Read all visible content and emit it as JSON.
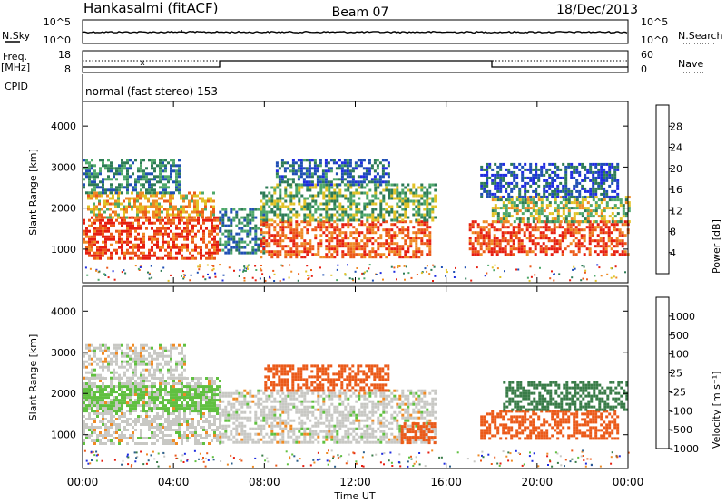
{
  "header": {
    "station": "Hankasalmi (fitACF)",
    "beam": "Beam 07",
    "date": "18/Dec/2013"
  },
  "status_panels": {
    "nsky_label": "N.Sky",
    "nsearch_label": "N.Search",
    "freq_label": "Freq.",
    "freq_unit": "[MHz]",
    "nave_label": "Nave",
    "cpid_label": "CPID",
    "cpid_text": "normal (fast stereo) 153",
    "noise_ticks": [
      "10^5",
      "10^0"
    ],
    "freq_ticks": [
      "18",
      "8"
    ],
    "nave_ticks": [
      "60",
      "0"
    ]
  },
  "chart_data": [
    {
      "type": "heatmap",
      "panel": "power",
      "title": "",
      "xlabel": "",
      "ylabel": "Slant Range [km]",
      "ylim": [
        180,
        4600
      ],
      "yticks": [
        "1000",
        "2000",
        "3000",
        "4000"
      ],
      "xlim": [
        0,
        24
      ],
      "colorbar": {
        "label": "Power [dB]",
        "ticks": [
          "4",
          "8",
          "12",
          "16",
          "20",
          "24",
          "28"
        ],
        "colors": [
          "#1f2ce0",
          "#1f4fb4",
          "#2d7b56",
          "#4ea86a",
          "#e2c227",
          "#ef8a24",
          "#eb5a19",
          "#e61e10"
        ]
      },
      "echo_regions": [
        {
          "t": [
            0.0,
            6.0
          ],
          "range": [
            750,
            1800
          ],
          "level": 28
        },
        {
          "t": [
            0.2,
            5.8
          ],
          "range": [
            1800,
            2400
          ],
          "level": 20
        },
        {
          "t": [
            0.0,
            4.2
          ],
          "range": [
            2400,
            3200
          ],
          "level": 10
        },
        {
          "t": [
            6.0,
            8.0
          ],
          "range": [
            900,
            2000
          ],
          "level": 10
        },
        {
          "t": [
            7.8,
            15.3
          ],
          "range": [
            800,
            1700
          ],
          "level": 26
        },
        {
          "t": [
            7.8,
            15.5
          ],
          "range": [
            1700,
            2600
          ],
          "level": 14
        },
        {
          "t": [
            8.5,
            13.5
          ],
          "range": [
            2600,
            3200
          ],
          "level": 8
        },
        {
          "t": [
            17.0,
            24.0
          ],
          "range": [
            900,
            1700
          ],
          "level": 28
        },
        {
          "t": [
            18.0,
            24.0
          ],
          "range": [
            1700,
            2300
          ],
          "level": 16
        },
        {
          "t": [
            17.5,
            23.5
          ],
          "range": [
            2300,
            3100
          ],
          "level": 6
        }
      ]
    },
    {
      "type": "heatmap",
      "panel": "velocity",
      "title": "",
      "xlabel": "Time UT",
      "ylabel": "Slant Range [km]",
      "ylim": [
        180,
        4600
      ],
      "yticks": [
        "1000",
        "2000",
        "3000",
        "4000"
      ],
      "xlim": [
        0,
        24
      ],
      "xticks": [
        "00:00",
        "04:00",
        "08:00",
        "12:00",
        "16:00",
        "20:00",
        "00:00"
      ],
      "colorbar": {
        "label": "Velocity [m s^-1]",
        "ticks": [
          "1000",
          "500",
          "100",
          "25",
          "-25",
          "-100",
          "-500",
          "-1000"
        ],
        "colors": [
          "#1f2ce0",
          "#2b5f8c",
          "#397c48",
          "#60c040",
          "#c8c8c4",
          "#ef8a24",
          "#eb5a19",
          "#e61e10"
        ]
      },
      "echo_regions": [
        {
          "t": [
            0.0,
            6.0
          ],
          "range": [
            800,
            2400
          ],
          "level": 0
        },
        {
          "t": [
            0.0,
            4.5
          ],
          "range": [
            2400,
            3200
          ],
          "level": 0
        },
        {
          "t": [
            0.0,
            6.0
          ],
          "range": [
            1600,
            2200
          ],
          "level": 60
        },
        {
          "t": [
            6.0,
            15.5
          ],
          "range": [
            800,
            2100
          ],
          "level": 0
        },
        {
          "t": [
            8.0,
            13.5
          ],
          "range": [
            2100,
            2700
          ],
          "level": -200
        },
        {
          "t": [
            14.0,
            15.5
          ],
          "range": [
            800,
            1300
          ],
          "level": -200
        },
        {
          "t": [
            17.5,
            23.5
          ],
          "range": [
            900,
            1600
          ],
          "level": -200
        },
        {
          "t": [
            18.5,
            24.0
          ],
          "range": [
            1600,
            2300
          ],
          "level": 150
        }
      ]
    }
  ]
}
